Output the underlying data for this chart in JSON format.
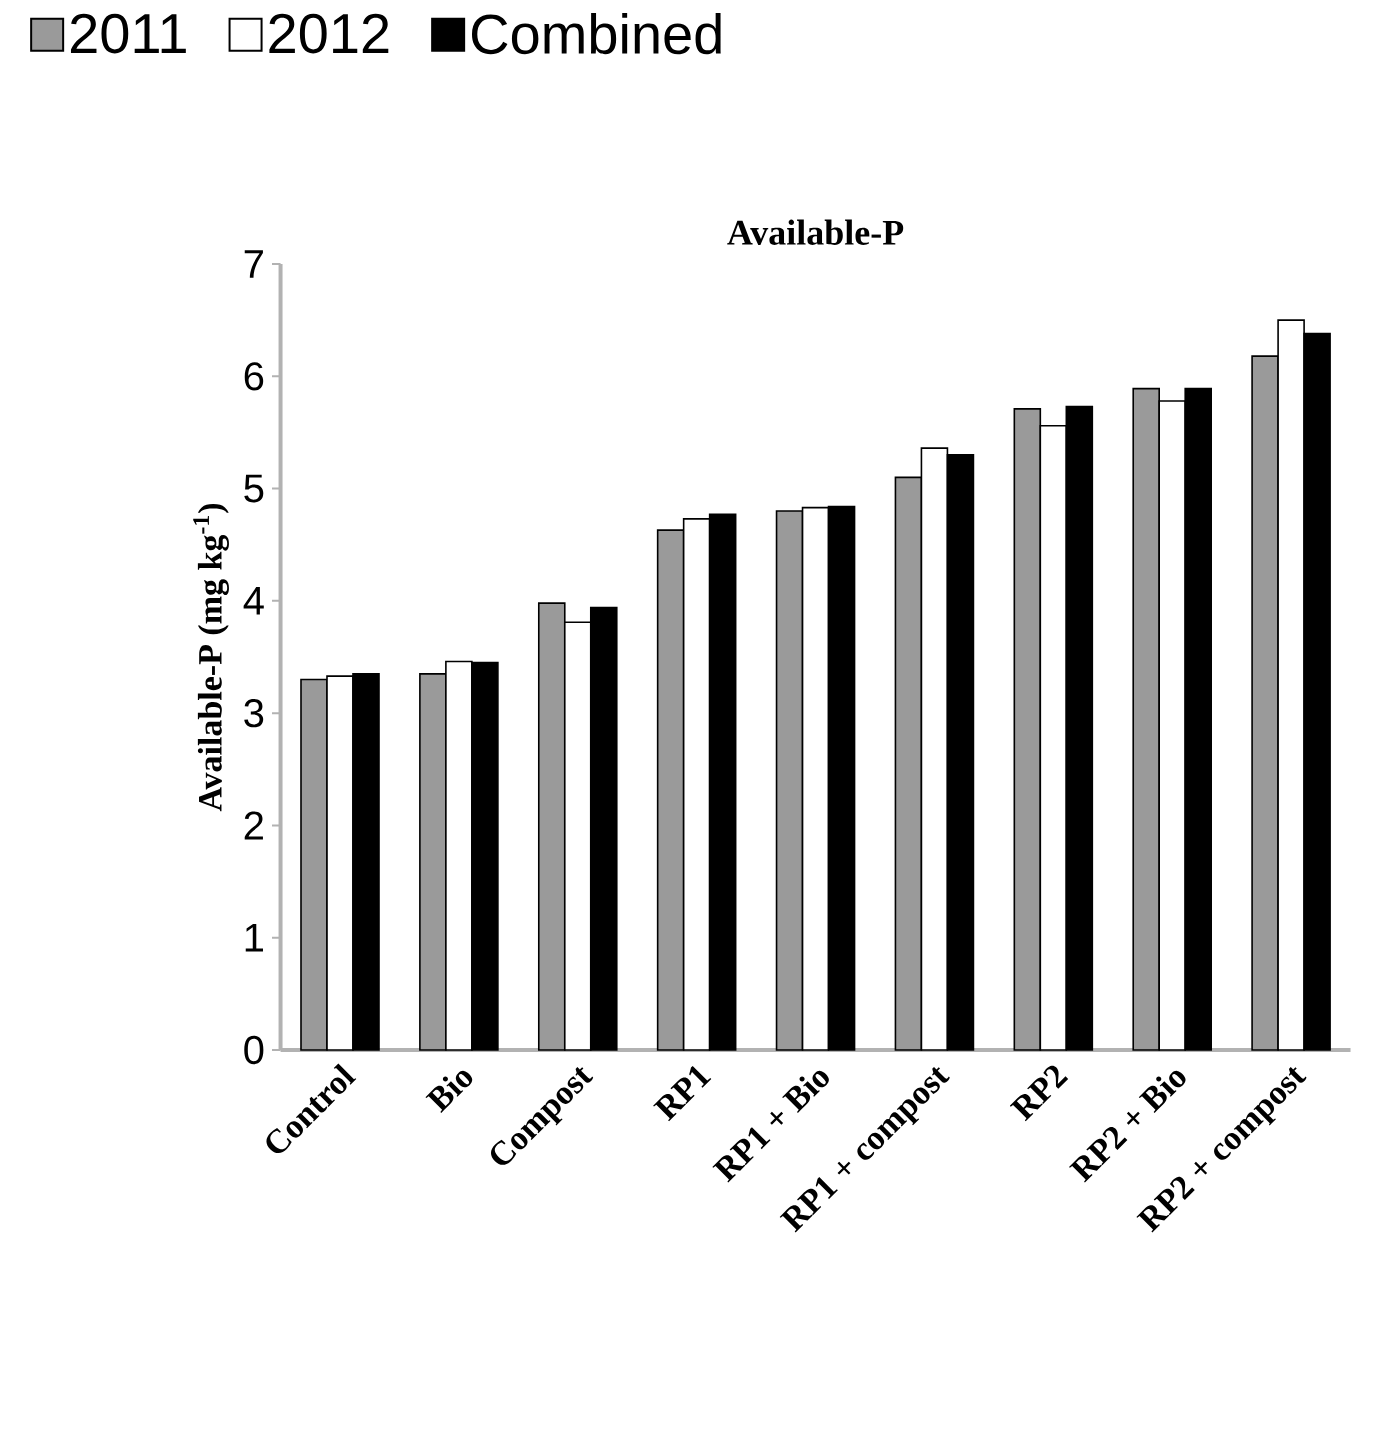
{
  "chart_data": {
    "type": "bar",
    "title": "Available-P",
    "ylabel": "Available-P  (mg  kg$^{-1}$)",
    "categories": [
      "Control",
      "Bio",
      "Compost",
      "RP1",
      "RP1 + Bio",
      "RP1 + compost",
      "RP2",
      "RP2 + Bio",
      "RP2 + compost"
    ],
    "series": [
      {
        "name": "2011",
        "color": "#9a9a9a",
        "values": [
          3.3,
          3.35,
          3.98,
          4.63,
          4.8,
          5.1,
          5.71,
          5.89,
          6.18
        ]
      },
      {
        "name": "2012",
        "color": "#ffffff",
        "values": [
          3.33,
          3.46,
          3.81,
          4.73,
          4.83,
          5.36,
          5.56,
          5.78,
          6.5
        ]
      },
      {
        "name": "Combined",
        "color": "#000000",
        "values": [
          3.35,
          3.45,
          3.94,
          4.77,
          4.84,
          5.3,
          5.73,
          5.89,
          6.38
        ]
      }
    ],
    "ylim": [
      0,
      7
    ],
    "yticks": [
      0,
      1,
      2,
      3,
      4,
      5,
      6,
      7
    ],
    "grid": false,
    "legend": "top"
  }
}
